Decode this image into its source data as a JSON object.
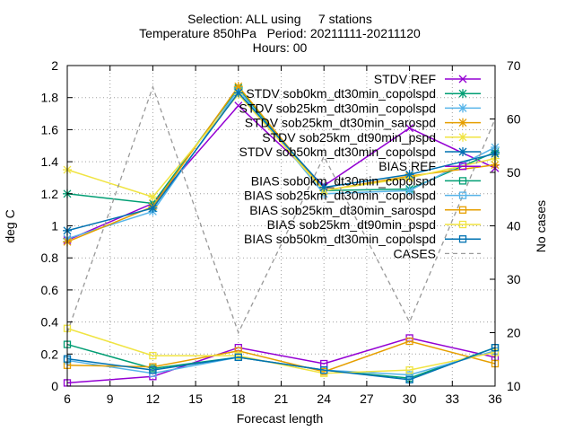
{
  "chart_data": {
    "type": "line",
    "title_lines": [
      "Selection: ALL using     7 stations",
      "Temperature 850hPa   Period: 20211111-20211120",
      "Hours: 00"
    ],
    "xlabel": "Forecast length",
    "ylabel": "deg C",
    "y2label": "No cases",
    "xlim": [
      6,
      36
    ],
    "ylim": [
      0,
      2
    ],
    "y2lim": [
      10,
      70
    ],
    "x_ticks": [
      6,
      9,
      12,
      15,
      18,
      21,
      24,
      27,
      30,
      33,
      36
    ],
    "y_ticks": [
      0,
      0.2,
      0.4,
      0.6,
      0.8,
      1,
      1.2,
      1.4,
      1.6,
      1.8,
      2
    ],
    "y2_ticks": [
      10,
      20,
      30,
      40,
      50,
      60,
      70
    ],
    "x": [
      6,
      12,
      18,
      24,
      30,
      36
    ],
    "legend_position": "top-right",
    "series": [
      {
        "name": "STDV REF",
        "color": "#9400d3",
        "marker": "x",
        "axis": "y1",
        "values": [
          0.91,
          1.14,
          1.75,
          1.25,
          1.61,
          1.36
        ]
      },
      {
        "name": "STDV sob0km_dt30min_copolspd",
        "color": "#009e73",
        "marker": "star",
        "axis": "y1",
        "values": [
          1.2,
          1.14,
          1.86,
          1.22,
          1.23,
          1.46
        ]
      },
      {
        "name": "STDV sob25km_dt30min_copolspd",
        "color": "#56b4e9",
        "marker": "star",
        "axis": "y1",
        "values": [
          0.92,
          1.09,
          1.85,
          1.2,
          1.22,
          1.49
        ]
      },
      {
        "name": "STDV sob25km_dt30min_sarospd",
        "color": "#e69f00",
        "marker": "star",
        "axis": "y1",
        "values": [
          0.9,
          1.12,
          1.87,
          1.22,
          1.31,
          1.38
        ]
      },
      {
        "name": "STDV sob25km_dt90min_pspd",
        "color": "#f0e442",
        "marker": "star",
        "axis": "y1",
        "values": [
          1.35,
          1.18,
          1.82,
          1.22,
          1.3,
          1.42
        ]
      },
      {
        "name": "STDV sob50km_dt30min_copolspd",
        "color": "#0072b2",
        "marker": "star",
        "axis": "y1",
        "values": [
          0.97,
          1.11,
          1.83,
          1.24,
          1.32,
          1.45
        ]
      },
      {
        "name": "BIAS REF",
        "color": "#9400d3",
        "marker": "square",
        "axis": "y1",
        "values": [
          0.02,
          0.06,
          0.24,
          0.14,
          0.3,
          0.18
        ]
      },
      {
        "name": "BIAS sob0km_dt30min_copolspd",
        "color": "#009e73",
        "marker": "square",
        "axis": "y1",
        "values": [
          0.26,
          0.11,
          0.18,
          0.1,
          0.05,
          0.24
        ]
      },
      {
        "name": "BIAS sob25km_dt30min_copolspd",
        "color": "#56b4e9",
        "marker": "square",
        "axis": "y1",
        "values": [
          0.16,
          0.08,
          0.18,
          0.1,
          0.07,
          0.22
        ]
      },
      {
        "name": "BIAS sob25km_dt30min_sarospd",
        "color": "#e69f00",
        "marker": "square",
        "axis": "y1",
        "values": [
          0.13,
          0.12,
          0.22,
          0.09,
          0.28,
          0.14
        ]
      },
      {
        "name": "BIAS sob25km_dt90min_pspd",
        "color": "#f0e442",
        "marker": "square",
        "axis": "y1",
        "values": [
          0.36,
          0.19,
          0.19,
          0.08,
          0.1,
          0.21
        ]
      },
      {
        "name": "BIAS sob50km_dt30min_copolspd",
        "color": "#0072b2",
        "marker": "square",
        "axis": "y1",
        "values": [
          0.17,
          0.1,
          0.18,
          0.1,
          0.04,
          0.24
        ]
      },
      {
        "name": "CASES",
        "color": "#999999",
        "marker": "none",
        "dashed": true,
        "axis": "y2",
        "values": [
          20,
          66,
          20,
          53,
          22,
          60
        ]
      }
    ]
  }
}
